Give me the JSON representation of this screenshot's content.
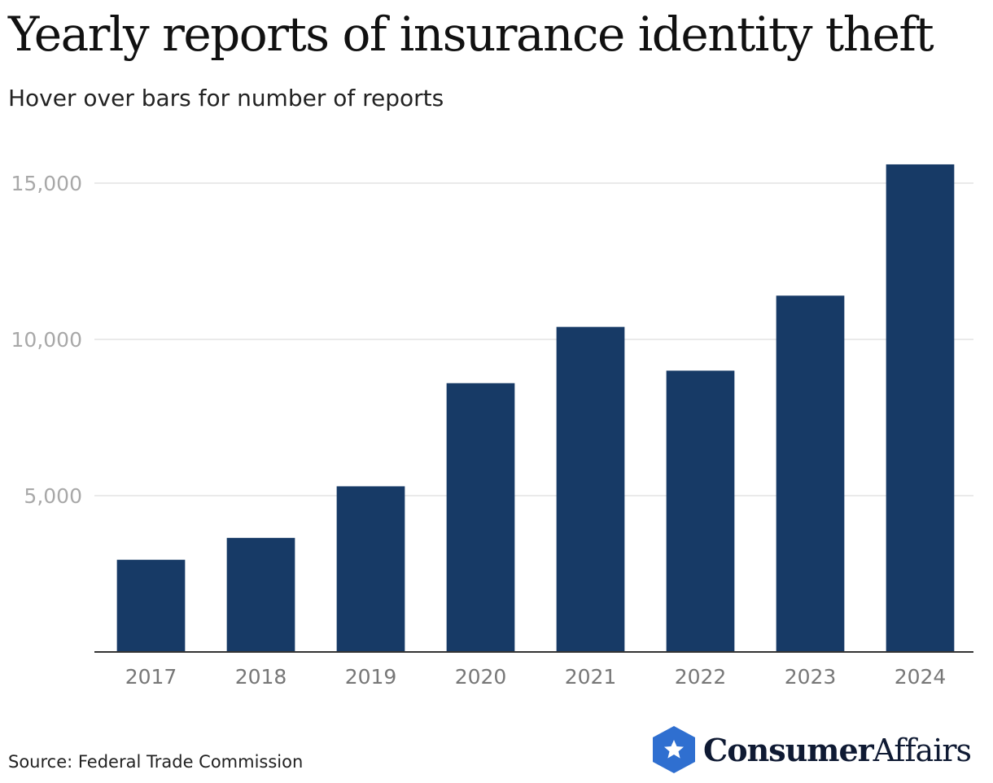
{
  "header": {
    "title": "Yearly reports of insurance identity theft",
    "subtitle": "Hover over bars for number of reports"
  },
  "footer": {
    "source": "Source: Federal Trade Commission",
    "brand_primary": "Consumer",
    "brand_secondary": "Affairs"
  },
  "colors": {
    "bar": "#173a66",
    "grid": "#e3e3e3",
    "axis": "#333333",
    "tick_label": "#a8a8a8",
    "x_label": "#777777",
    "brand_badge": "#2f6fd0"
  },
  "chart_data": {
    "type": "bar",
    "title": "Yearly reports of insurance identity theft",
    "subtitle": "Hover over bars for number of reports",
    "xlabel": "",
    "ylabel": "",
    "categories": [
      "2017",
      "2018",
      "2019",
      "2020",
      "2021",
      "2022",
      "2023",
      "2024"
    ],
    "values": [
      2950,
      3650,
      5300,
      8600,
      10400,
      9000,
      11400,
      15600
    ],
    "ylim": [
      0,
      15000
    ],
    "yticks": [
      5000,
      10000,
      15000
    ],
    "ytick_labels": [
      "5,000",
      "10,000",
      "15,000"
    ],
    "grid": true,
    "legend": "none"
  }
}
